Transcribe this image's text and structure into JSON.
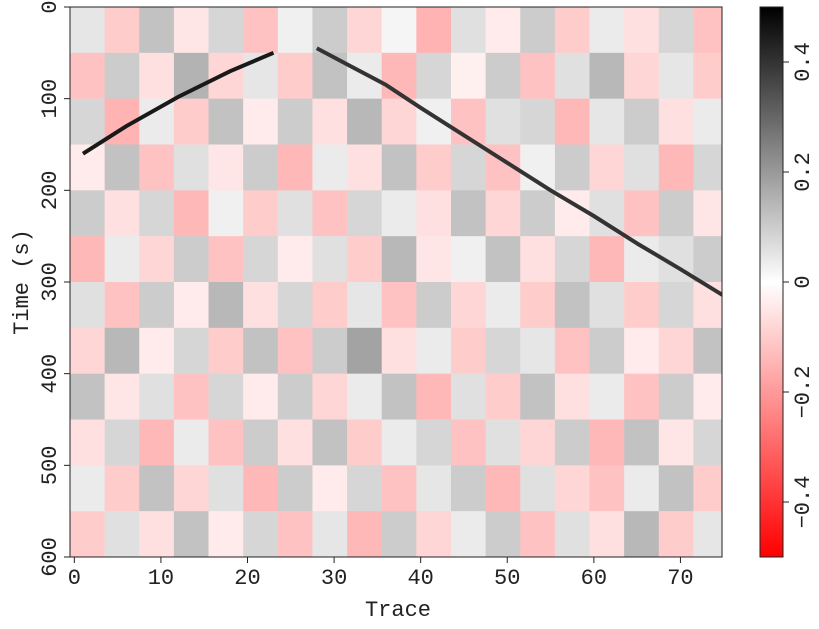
{
  "chart_data": {
    "type": "seismic-image",
    "xlabel": "Trace",
    "ylabel": "Time (s)",
    "xlim": [
      -0.5,
      74.8
    ],
    "ylim": [
      0,
      600
    ],
    "xticks": [
      0,
      10,
      20,
      30,
      40,
      50,
      60,
      70
    ],
    "yticks": [
      0,
      100,
      200,
      300,
      400,
      500,
      600
    ],
    "clim": [
      -0.5,
      0.5
    ],
    "cticks": [
      {
        "value": -0.4,
        "label": "−0.4"
      },
      {
        "value": -0.2,
        "label": "−0.2"
      },
      0,
      0.2,
      0.4
    ],
    "grid": {
      "x_edges": [
        -0.5,
        3.5,
        7.5,
        11.5,
        15.5,
        19.5,
        23.5,
        27.5,
        31.5,
        35.5,
        39.5,
        43.5,
        47.5,
        51.5,
        55.5,
        59.5,
        63.5,
        67.5,
        71.5,
        75.5
      ],
      "y_edges": [
        0,
        50,
        100,
        150,
        200,
        250,
        300,
        350,
        400,
        450,
        500,
        550,
        600
      ],
      "values": [
        [
          0.05,
          -0.1,
          0.12,
          -0.05,
          0.08,
          -0.12,
          0.03,
          0.1,
          -0.08,
          0.02,
          -0.15,
          0.06,
          -0.04,
          0.1,
          -0.1,
          0.04,
          -0.06,
          0.08,
          -0.12
        ],
        [
          -0.12,
          0.1,
          -0.06,
          0.15,
          -0.08,
          0.05,
          -0.1,
          0.12,
          0.04,
          -0.14,
          0.08,
          -0.03,
          0.1,
          -0.12,
          0.06,
          0.14,
          -0.08,
          0.05,
          -0.1
        ],
        [
          0.08,
          -0.15,
          0.04,
          -0.1,
          0.12,
          -0.04,
          0.1,
          -0.06,
          0.14,
          -0.08,
          0.03,
          -0.12,
          0.06,
          0.08,
          -0.14,
          0.05,
          0.1,
          -0.06,
          0.04
        ],
        [
          -0.04,
          0.12,
          -0.12,
          0.06,
          -0.05,
          0.1,
          -0.14,
          0.04,
          -0.06,
          0.12,
          -0.1,
          0.08,
          -0.12,
          0.03,
          0.1,
          -0.08,
          0.06,
          -0.14,
          0.08
        ],
        [
          0.1,
          -0.06,
          0.08,
          -0.14,
          0.03,
          -0.1,
          0.06,
          -0.12,
          0.08,
          0.04,
          -0.06,
          0.12,
          -0.08,
          0.1,
          -0.04,
          0.06,
          -0.12,
          0.1,
          -0.05
        ],
        [
          -0.14,
          0.04,
          -0.08,
          0.1,
          -0.12,
          0.08,
          -0.04,
          0.06,
          -0.1,
          0.14,
          -0.05,
          0.03,
          0.12,
          -0.06,
          0.08,
          -0.14,
          0.04,
          0.06,
          0.1
        ],
        [
          0.06,
          -0.12,
          0.1,
          -0.04,
          0.14,
          -0.06,
          0.08,
          -0.1,
          0.05,
          -0.12,
          0.1,
          -0.08,
          0.04,
          -0.1,
          0.12,
          0.06,
          -0.1,
          0.08,
          -0.06
        ],
        [
          -0.08,
          0.14,
          -0.04,
          0.08,
          -0.1,
          0.12,
          -0.12,
          0.1,
          0.18,
          -0.06,
          0.04,
          -0.1,
          0.08,
          0.05,
          -0.12,
          0.1,
          -0.04,
          -0.08,
          0.12
        ],
        [
          0.12,
          -0.05,
          0.06,
          -0.12,
          0.08,
          -0.04,
          0.1,
          -0.08,
          0.04,
          0.12,
          -0.14,
          0.06,
          -0.1,
          0.12,
          -0.06,
          0.04,
          -0.12,
          0.1,
          -0.04
        ],
        [
          -0.06,
          0.08,
          -0.14,
          0.04,
          -0.12,
          0.1,
          -0.06,
          0.12,
          -0.1,
          0.04,
          0.08,
          -0.12,
          0.06,
          -0.08,
          0.1,
          -0.14,
          0.12,
          -0.05,
          0.08
        ],
        [
          0.04,
          -0.1,
          0.12,
          -0.08,
          0.06,
          -0.14,
          0.1,
          -0.04,
          0.08,
          -0.12,
          0.05,
          0.1,
          -0.14,
          0.06,
          -0.08,
          -0.12,
          0.04,
          0.12,
          -0.1
        ],
        [
          -0.1,
          0.06,
          -0.06,
          0.12,
          -0.04,
          0.08,
          -0.12,
          0.05,
          -0.14,
          0.1,
          -0.08,
          0.04,
          0.1,
          -0.12,
          0.06,
          -0.06,
          0.14,
          -0.1,
          0.05
        ]
      ]
    },
    "events": [
      {
        "amplitude": 0.45,
        "x": [
          1,
          6,
          12,
          18,
          23
        ],
        "y": [
          160,
          130,
          98,
          70,
          50
        ]
      },
      {
        "amplitude": 0.4,
        "x": [
          28,
          32,
          36,
          40,
          45,
          50,
          55,
          60,
          65,
          70,
          75
        ],
        "y": [
          45,
          65,
          85,
          110,
          140,
          170,
          200,
          228,
          258,
          286,
          315
        ]
      }
    ]
  }
}
